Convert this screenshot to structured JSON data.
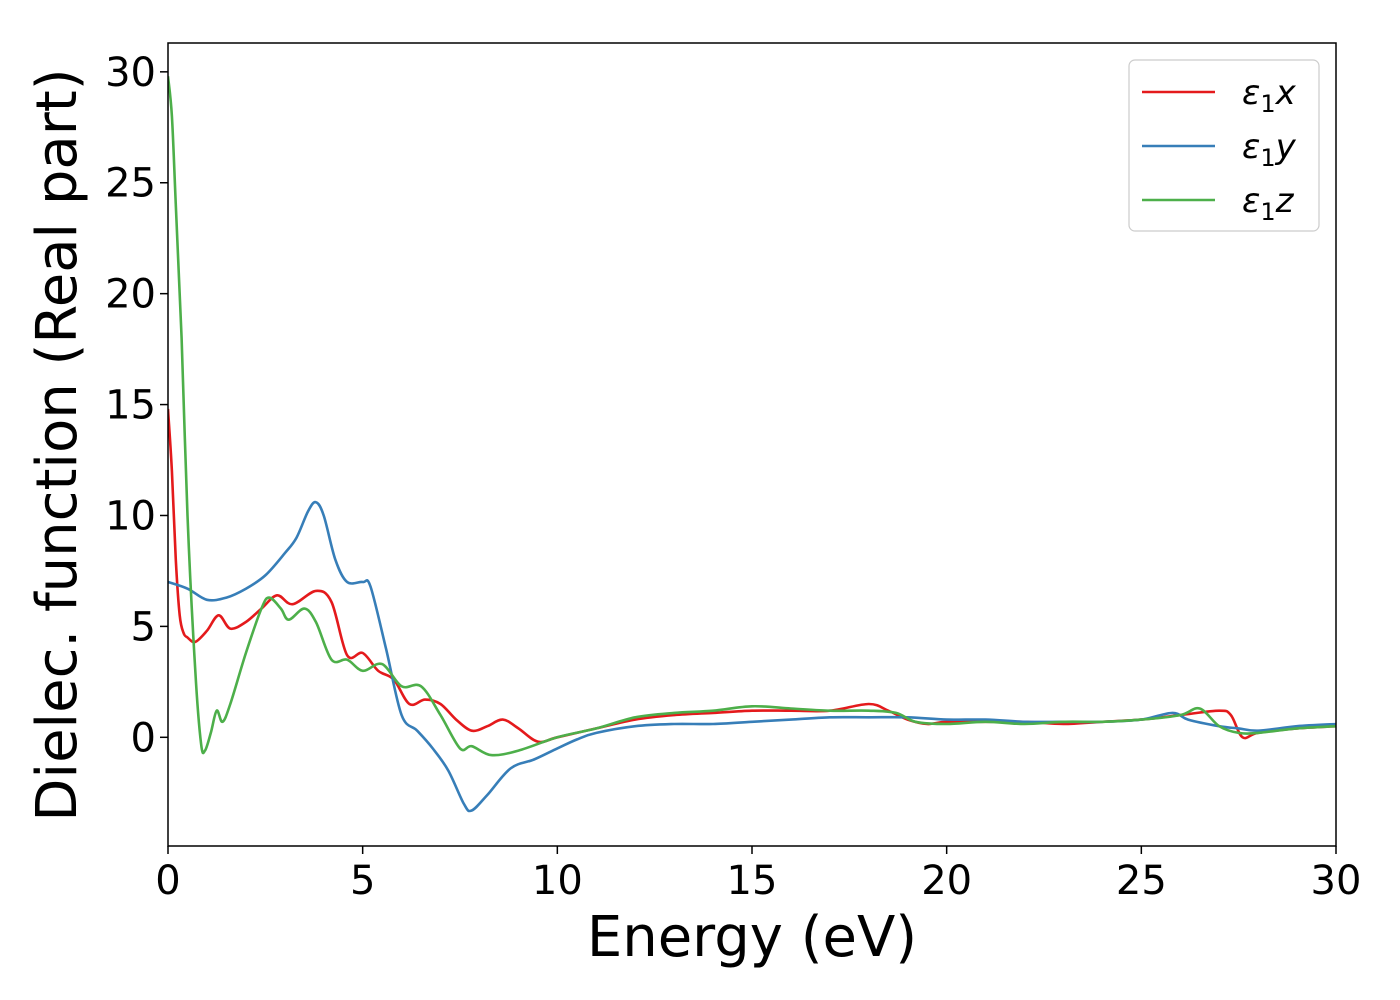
{
  "chart_data": {
    "type": "line",
    "title": "",
    "xlabel": "Energy (eV)",
    "ylabel": "Dielec. function (Real part)",
    "xlim": [
      0,
      30
    ],
    "ylim": [
      -4.9,
      31.3
    ],
    "xticks": [
      0,
      5,
      10,
      15,
      20,
      25,
      30
    ],
    "yticks": [
      0,
      5,
      10,
      15,
      20,
      25,
      30
    ],
    "grid": false,
    "legend_position": "top-right",
    "series": [
      {
        "name": "ε₁x",
        "legend": {
          "base": "ε",
          "sub": "1",
          "suffix": "x"
        },
        "color": "#e41a1c",
        "x": [
          0,
          0.1,
          0.2,
          0.3,
          0.4,
          0.5,
          0.7,
          1.0,
          1.3,
          1.6,
          2.0,
          2.4,
          2.8,
          3.2,
          3.8,
          4.2,
          4.6,
          5.0,
          5.4,
          5.8,
          6.2,
          6.6,
          7.0,
          7.4,
          7.8,
          8.2,
          8.6,
          9.0,
          9.5,
          10.0,
          11.0,
          12.0,
          13.0,
          14.0,
          15.0,
          16.0,
          17.0,
          18.0,
          18.5,
          19.0,
          19.5,
          20.0,
          21.0,
          22.0,
          23.0,
          24.0,
          25.0,
          26.0,
          27.0,
          27.3,
          27.6,
          28.0,
          29.0,
          30.0
        ],
        "y": [
          14.8,
          12.0,
          8.0,
          5.5,
          4.7,
          4.5,
          4.3,
          4.8,
          5.5,
          4.9,
          5.2,
          5.8,
          6.4,
          6.0,
          6.6,
          6.1,
          3.7,
          3.8,
          3.0,
          2.6,
          1.5,
          1.7,
          1.5,
          0.8,
          0.3,
          0.5,
          0.8,
          0.4,
          -0.2,
          0.0,
          0.4,
          0.8,
          1.0,
          1.1,
          1.2,
          1.2,
          1.2,
          1.5,
          1.2,
          0.8,
          0.6,
          0.7,
          0.7,
          0.7,
          0.6,
          0.7,
          0.8,
          1.0,
          1.2,
          1.0,
          0.0,
          0.2,
          0.4,
          0.5
        ]
      },
      {
        "name": "ε₁y",
        "legend": {
          "base": "ε",
          "sub": "1",
          "suffix": "y"
        },
        "color": "#377eb8",
        "x": [
          0,
          0.5,
          1.0,
          1.5,
          2.0,
          2.5,
          3.0,
          3.3,
          3.6,
          3.8,
          4.0,
          4.3,
          4.6,
          5.0,
          5.2,
          5.6,
          6.0,
          6.4,
          6.8,
          7.2,
          7.6,
          7.8,
          8.2,
          8.8,
          9.4,
          10.0,
          10.5,
          11.0,
          12.0,
          13.0,
          14.0,
          15.0,
          16.0,
          17.0,
          18.0,
          19.0,
          20.0,
          21.0,
          22.0,
          23.0,
          24.0,
          25.0,
          25.8,
          26.2,
          27.0,
          27.5,
          28.0,
          29.0,
          30.0
        ],
        "y": [
          7.0,
          6.7,
          6.2,
          6.3,
          6.7,
          7.3,
          8.3,
          9.0,
          10.2,
          10.6,
          10.0,
          8.0,
          7.0,
          7.0,
          6.8,
          4.0,
          1.0,
          0.3,
          -0.5,
          -1.5,
          -3.0,
          -3.3,
          -2.6,
          -1.4,
          -1.0,
          -0.5,
          -0.1,
          0.2,
          0.5,
          0.6,
          0.6,
          0.7,
          0.8,
          0.9,
          0.9,
          0.9,
          0.8,
          0.8,
          0.7,
          0.7,
          0.7,
          0.8,
          1.1,
          0.8,
          0.5,
          0.4,
          0.3,
          0.5,
          0.6
        ]
      },
      {
        "name": "ε₁z",
        "legend": {
          "base": "ε",
          "sub": "1",
          "suffix": "z"
        },
        "color": "#4daf4a",
        "x": [
          0,
          0.1,
          0.2,
          0.35,
          0.5,
          0.7,
          0.85,
          0.95,
          1.1,
          1.25,
          1.4,
          1.6,
          2.0,
          2.4,
          2.6,
          2.9,
          3.1,
          3.5,
          3.8,
          4.2,
          4.6,
          5.0,
          5.5,
          6.0,
          6.5,
          7.0,
          7.5,
          7.8,
          8.3,
          9.0,
          10.0,
          11.0,
          12.0,
          13.0,
          14.0,
          15.0,
          16.0,
          17.0,
          18.0,
          18.7,
          19.2,
          20.0,
          21.0,
          22.0,
          23.0,
          24.0,
          25.0,
          26.0,
          26.5,
          27.0,
          27.5,
          28.0,
          29.0,
          30.0
        ],
        "y": [
          29.8,
          28.0,
          24.0,
          18.0,
          10.0,
          3.0,
          -0.3,
          -0.6,
          0.2,
          1.2,
          0.7,
          1.5,
          3.8,
          5.8,
          6.3,
          5.8,
          5.3,
          5.8,
          5.2,
          3.5,
          3.5,
          3.0,
          3.3,
          2.3,
          2.3,
          1.0,
          -0.5,
          -0.4,
          -0.8,
          -0.6,
          0.0,
          0.4,
          0.9,
          1.1,
          1.2,
          1.4,
          1.3,
          1.2,
          1.2,
          1.1,
          0.7,
          0.6,
          0.7,
          0.6,
          0.7,
          0.7,
          0.8,
          1.0,
          1.3,
          0.5,
          0.2,
          0.2,
          0.4,
          0.5
        ]
      }
    ]
  }
}
